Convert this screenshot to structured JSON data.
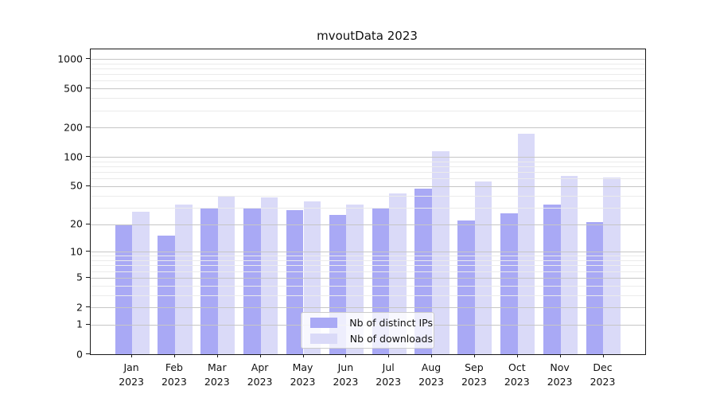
{
  "title": "mvoutData 2023",
  "legend": {
    "items": [
      {
        "label": "Nb of distinct IPs",
        "color": "#a9a9f5"
      },
      {
        "label": "Nb of downloads",
        "color": "#dadaf8"
      }
    ]
  },
  "y_axis": {
    "tick_labels": [
      "0",
      "1",
      "2",
      "5",
      "10",
      "20",
      "50",
      "100",
      "200",
      "500",
      "1000"
    ]
  },
  "chart_data": {
    "type": "bar",
    "title": "mvoutData 2023",
    "categories": [
      "Jan 2023",
      "Feb 2023",
      "Mar 2023",
      "Apr 2023",
      "May 2023",
      "Jun 2023",
      "Jul 2023",
      "Aug 2023",
      "Sep 2023",
      "Oct 2023",
      "Nov 2023",
      "Dec 2023"
    ],
    "series": [
      {
        "name": "Nb of distinct IPs",
        "color": "#a9a9f5",
        "values": [
          20,
          15,
          29,
          30,
          28,
          25,
          29,
          47,
          22,
          26,
          32,
          21
        ]
      },
      {
        "name": "Nb of downloads",
        "color": "#dadaf8",
        "values": [
          27,
          32,
          40,
          38,
          35,
          32,
          42,
          115,
          56,
          173,
          64,
          62
        ]
      }
    ],
    "xlabel": "",
    "ylabel": "",
    "yscale": "log1p",
    "ylim": [
      0,
      1250
    ],
    "yticks": [
      0,
      1,
      2,
      5,
      10,
      20,
      50,
      100,
      200,
      500,
      1000
    ],
    "minor_gridlines": [
      3,
      4,
      6,
      7,
      8,
      9,
      30,
      40,
      60,
      70,
      80,
      90,
      300,
      400,
      600,
      700,
      800,
      900
    ],
    "grid": true,
    "grid_over_bars": true,
    "legend_position": "lower center"
  },
  "colors": {
    "major_grid": "#c6c6c6",
    "minor_grid": "#ebebeb",
    "spine": "#1a1a1a",
    "background": "#ffffff",
    "text": "#111111"
  }
}
